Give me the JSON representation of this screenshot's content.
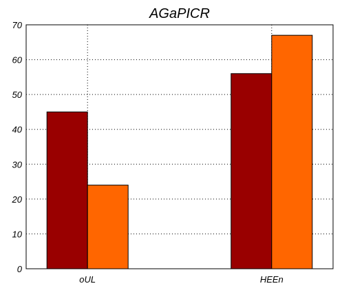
{
  "chart_data": {
    "type": "bar",
    "title": "AGaPICR",
    "xlabel": "",
    "ylabel": "",
    "categories": [
      "oUL",
      "HEEn"
    ],
    "series": [
      {
        "values": [
          45,
          56
        ],
        "color": "#990000"
      },
      {
        "values": [
          24,
          67
        ],
        "color": "#ff6600"
      }
    ],
    "ylim": [
      0,
      70
    ],
    "yticks": [
      0,
      10,
      20,
      30,
      40,
      50,
      60,
      70
    ],
    "grid": true,
    "legend": "none"
  }
}
